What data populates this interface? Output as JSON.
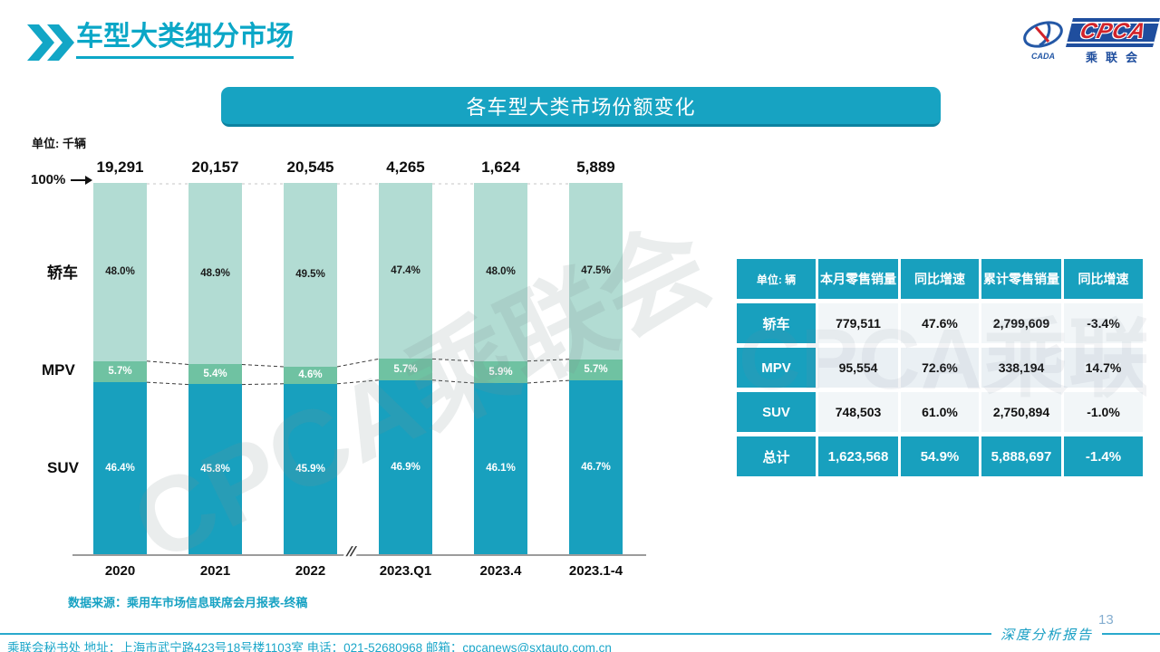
{
  "page": {
    "title": "车型大类细分市场",
    "banner_title": "各车型大类市场份额变化",
    "source": "数据来源：乘用车市场信息联席会月报表-终稿",
    "footer": "乘联会秘书处   地址：上海市武宁路423号18号楼1103室  电话：021-52680968   邮箱：cpcanews@sxtauto.com.cn",
    "report_label": "深度分析报告",
    "page_number": "13",
    "watermark": "CPCA乘联会"
  },
  "logo": {
    "org_small": "CADA",
    "acronym": "CPCA",
    "org_cn": "乘联会"
  },
  "chart_data": {
    "type": "bar",
    "stacked": true,
    "unit_label": "单位: 千辆",
    "y_top_label": "100%",
    "axis_break": "//",
    "categories": [
      "2020",
      "2021",
      "2022",
      "2023.Q1",
      "2023.4",
      "2023.1-4"
    ],
    "totals": [
      "19,291",
      "20,157",
      "20,545",
      "4,265",
      "1,624",
      "5,889"
    ],
    "series": [
      {
        "name": "轿车",
        "color": "#b2dcd3",
        "text_color": "#1a1a1a",
        "values": [
          48.0,
          48.9,
          49.5,
          47.4,
          48.0,
          47.5
        ],
        "labels": [
          "48.0%",
          "48.9%",
          "49.5%",
          "47.4%",
          "48.0%",
          "47.5%"
        ]
      },
      {
        "name": "MPV",
        "color": "#6fc2a2",
        "text_color": "#ffffff",
        "values": [
          5.7,
          5.4,
          4.6,
          5.7,
          5.9,
          5.7
        ],
        "labels": [
          "5.7%",
          "5.4%",
          "4.6%",
          "5.7%",
          "5.9%",
          "5.7%"
        ]
      },
      {
        "name": "SUV",
        "color": "#18a0be",
        "text_color": "#ffffff",
        "values": [
          46.4,
          45.8,
          45.9,
          46.9,
          46.1,
          46.7
        ],
        "labels": [
          "46.4%",
          "45.8%",
          "45.9%",
          "46.9%",
          "46.1%",
          "46.7%"
        ]
      }
    ],
    "ylim": [
      0,
      100
    ],
    "grid": false,
    "legend_position": "left"
  },
  "table": {
    "headers": [
      "单位: 辆",
      "本月零售销量",
      "同比增速",
      "累计零售销量",
      "同比增速"
    ],
    "rows": [
      {
        "label": "轿车",
        "cells": [
          "779,511",
          "47.6%",
          "2,799,609",
          "-3.4%"
        ],
        "highlight": false
      },
      {
        "label": "MPV",
        "cells": [
          "95,554",
          "72.6%",
          "338,194",
          "14.7%"
        ],
        "highlight": false
      },
      {
        "label": "SUV",
        "cells": [
          "748,503",
          "61.0%",
          "2,750,894",
          "-1.0%"
        ],
        "highlight": false
      },
      {
        "label": "总计",
        "cells": [
          "1,623,568",
          "54.9%",
          "5,888,697",
          "-1.4%"
        ],
        "highlight": true
      }
    ]
  },
  "colors": {
    "teal": "#18a0be",
    "banner": "#17a3c2",
    "title_cyan": "#0ba7c7",
    "sedan_green": "#b2dcd3",
    "mpv_green": "#6fc2a2",
    "footer_cyan": "#1ba6c9",
    "page_number_blue": "#85aed0",
    "logo_blue": "#1f4e9e",
    "logo_red": "#d2232a"
  }
}
